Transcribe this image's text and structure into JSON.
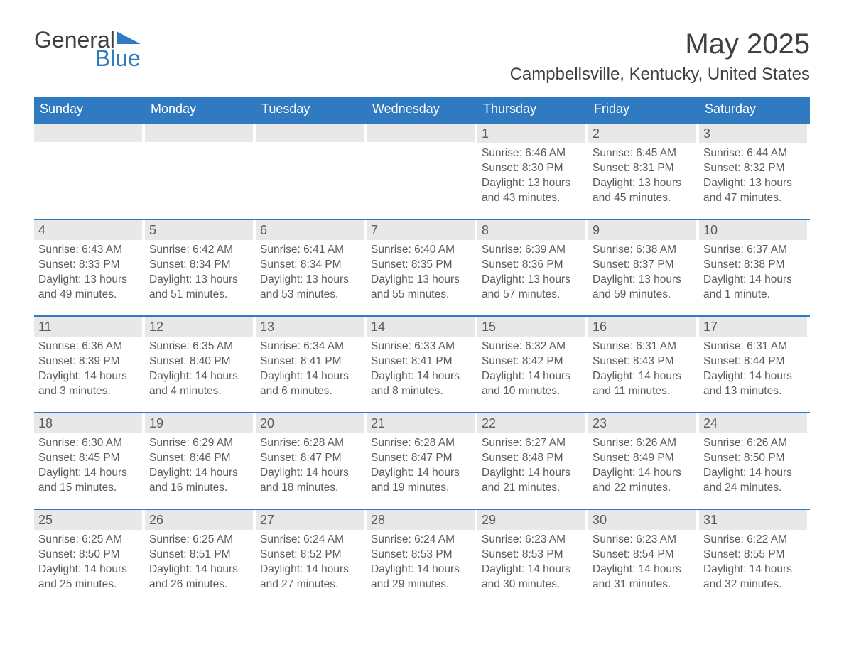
{
  "logo": {
    "general": "General",
    "blue": "Blue"
  },
  "title": "May 2025",
  "location": "Campbellsville, Kentucky, United States",
  "colors": {
    "header_bg": "#2f7ac0",
    "header_text": "#ffffff",
    "daynum_bg": "#e8e8e8",
    "body_text": "#5b5b5b",
    "page_bg": "#ffffff",
    "week_border": "#2f7ac0"
  },
  "day_headers": [
    "Sunday",
    "Monday",
    "Tuesday",
    "Wednesday",
    "Thursday",
    "Friday",
    "Saturday"
  ],
  "labels": {
    "sunrise": "Sunrise: ",
    "sunset": "Sunset: ",
    "daylight": "Daylight: "
  },
  "weeks": [
    [
      null,
      null,
      null,
      null,
      {
        "n": "1",
        "sunrise": "6:46 AM",
        "sunset": "8:30 PM",
        "daylight": "13 hours and 43 minutes."
      },
      {
        "n": "2",
        "sunrise": "6:45 AM",
        "sunset": "8:31 PM",
        "daylight": "13 hours and 45 minutes."
      },
      {
        "n": "3",
        "sunrise": "6:44 AM",
        "sunset": "8:32 PM",
        "daylight": "13 hours and 47 minutes."
      }
    ],
    [
      {
        "n": "4",
        "sunrise": "6:43 AM",
        "sunset": "8:33 PM",
        "daylight": "13 hours and 49 minutes."
      },
      {
        "n": "5",
        "sunrise": "6:42 AM",
        "sunset": "8:34 PM",
        "daylight": "13 hours and 51 minutes."
      },
      {
        "n": "6",
        "sunrise": "6:41 AM",
        "sunset": "8:34 PM",
        "daylight": "13 hours and 53 minutes."
      },
      {
        "n": "7",
        "sunrise": "6:40 AM",
        "sunset": "8:35 PM",
        "daylight": "13 hours and 55 minutes."
      },
      {
        "n": "8",
        "sunrise": "6:39 AM",
        "sunset": "8:36 PM",
        "daylight": "13 hours and 57 minutes."
      },
      {
        "n": "9",
        "sunrise": "6:38 AM",
        "sunset": "8:37 PM",
        "daylight": "13 hours and 59 minutes."
      },
      {
        "n": "10",
        "sunrise": "6:37 AM",
        "sunset": "8:38 PM",
        "daylight": "14 hours and 1 minute."
      }
    ],
    [
      {
        "n": "11",
        "sunrise": "6:36 AM",
        "sunset": "8:39 PM",
        "daylight": "14 hours and 3 minutes."
      },
      {
        "n": "12",
        "sunrise": "6:35 AM",
        "sunset": "8:40 PM",
        "daylight": "14 hours and 4 minutes."
      },
      {
        "n": "13",
        "sunrise": "6:34 AM",
        "sunset": "8:41 PM",
        "daylight": "14 hours and 6 minutes."
      },
      {
        "n": "14",
        "sunrise": "6:33 AM",
        "sunset": "8:41 PM",
        "daylight": "14 hours and 8 minutes."
      },
      {
        "n": "15",
        "sunrise": "6:32 AM",
        "sunset": "8:42 PM",
        "daylight": "14 hours and 10 minutes."
      },
      {
        "n": "16",
        "sunrise": "6:31 AM",
        "sunset": "8:43 PM",
        "daylight": "14 hours and 11 minutes."
      },
      {
        "n": "17",
        "sunrise": "6:31 AM",
        "sunset": "8:44 PM",
        "daylight": "14 hours and 13 minutes."
      }
    ],
    [
      {
        "n": "18",
        "sunrise": "6:30 AM",
        "sunset": "8:45 PM",
        "daylight": "14 hours and 15 minutes."
      },
      {
        "n": "19",
        "sunrise": "6:29 AM",
        "sunset": "8:46 PM",
        "daylight": "14 hours and 16 minutes."
      },
      {
        "n": "20",
        "sunrise": "6:28 AM",
        "sunset": "8:47 PM",
        "daylight": "14 hours and 18 minutes."
      },
      {
        "n": "21",
        "sunrise": "6:28 AM",
        "sunset": "8:47 PM",
        "daylight": "14 hours and 19 minutes."
      },
      {
        "n": "22",
        "sunrise": "6:27 AM",
        "sunset": "8:48 PM",
        "daylight": "14 hours and 21 minutes."
      },
      {
        "n": "23",
        "sunrise": "6:26 AM",
        "sunset": "8:49 PM",
        "daylight": "14 hours and 22 minutes."
      },
      {
        "n": "24",
        "sunrise": "6:26 AM",
        "sunset": "8:50 PM",
        "daylight": "14 hours and 24 minutes."
      }
    ],
    [
      {
        "n": "25",
        "sunrise": "6:25 AM",
        "sunset": "8:50 PM",
        "daylight": "14 hours and 25 minutes."
      },
      {
        "n": "26",
        "sunrise": "6:25 AM",
        "sunset": "8:51 PM",
        "daylight": "14 hours and 26 minutes."
      },
      {
        "n": "27",
        "sunrise": "6:24 AM",
        "sunset": "8:52 PM",
        "daylight": "14 hours and 27 minutes."
      },
      {
        "n": "28",
        "sunrise": "6:24 AM",
        "sunset": "8:53 PM",
        "daylight": "14 hours and 29 minutes."
      },
      {
        "n": "29",
        "sunrise": "6:23 AM",
        "sunset": "8:53 PM",
        "daylight": "14 hours and 30 minutes."
      },
      {
        "n": "30",
        "sunrise": "6:23 AM",
        "sunset": "8:54 PM",
        "daylight": "14 hours and 31 minutes."
      },
      {
        "n": "31",
        "sunrise": "6:22 AM",
        "sunset": "8:55 PM",
        "daylight": "14 hours and 32 minutes."
      }
    ]
  ]
}
